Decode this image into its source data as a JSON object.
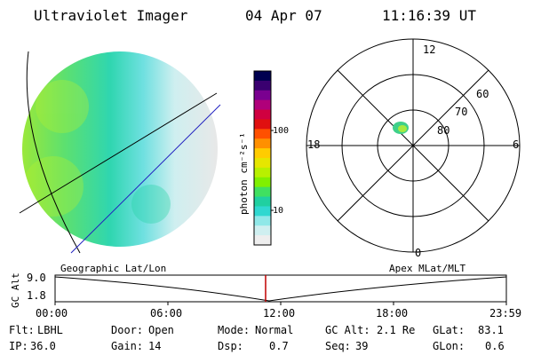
{
  "header": {
    "instrument": "Ultraviolet Imager",
    "date": "04 Apr 07",
    "time": "11:16:39 UT"
  },
  "colorbar": {
    "label": "photon cm⁻²s⁻¹",
    "ticks": [
      "100",
      "10"
    ],
    "colors": [
      "#000050",
      "#3a0070",
      "#7a0090",
      "#b0007a",
      "#d00040",
      "#e01010",
      "#ff5000",
      "#ff9000",
      "#ffcc00",
      "#e6e600",
      "#b8f000",
      "#80f000",
      "#40e060",
      "#20d0a0",
      "#30d8d0",
      "#90e8e8",
      "#cfeff0",
      "#eeeeee"
    ]
  },
  "polar_plot": {
    "mlt_labels": {
      "top": "12",
      "left": "18",
      "right": "6",
      "bottom": "0"
    },
    "lat_labels": [
      "60",
      "70",
      "80"
    ]
  },
  "timeline": {
    "left_label": "Geographic Lat/Lon",
    "right_label": "Apex MLat/MLT",
    "axis_label": "GC Alt",
    "y_ticks": [
      "9.0",
      "1.8"
    ],
    "x_ticks": [
      "00:00",
      "06:00",
      "12:00",
      "18:00",
      "23:59"
    ],
    "marker_color": "#c00000"
  },
  "status": {
    "row1": [
      {
        "label": "Flt:",
        "value": "LBHL"
      },
      {
        "label": "Door:",
        "value": "Open"
      },
      {
        "label": "Mode:",
        "value": "Normal"
      },
      {
        "label": "GC Alt:",
        "value": "2.1 Re"
      },
      {
        "label": "GLat:",
        "value": "83.1"
      }
    ],
    "row2": [
      {
        "label": "IP:",
        "value": "36.0"
      },
      {
        "label": "Gain:",
        "value": "14"
      },
      {
        "label": "Dsp:",
        "value": "0.7"
      },
      {
        "label": "Seq:",
        "value": "39"
      },
      {
        "label": "GLon:",
        "value": "0.6"
      }
    ]
  }
}
